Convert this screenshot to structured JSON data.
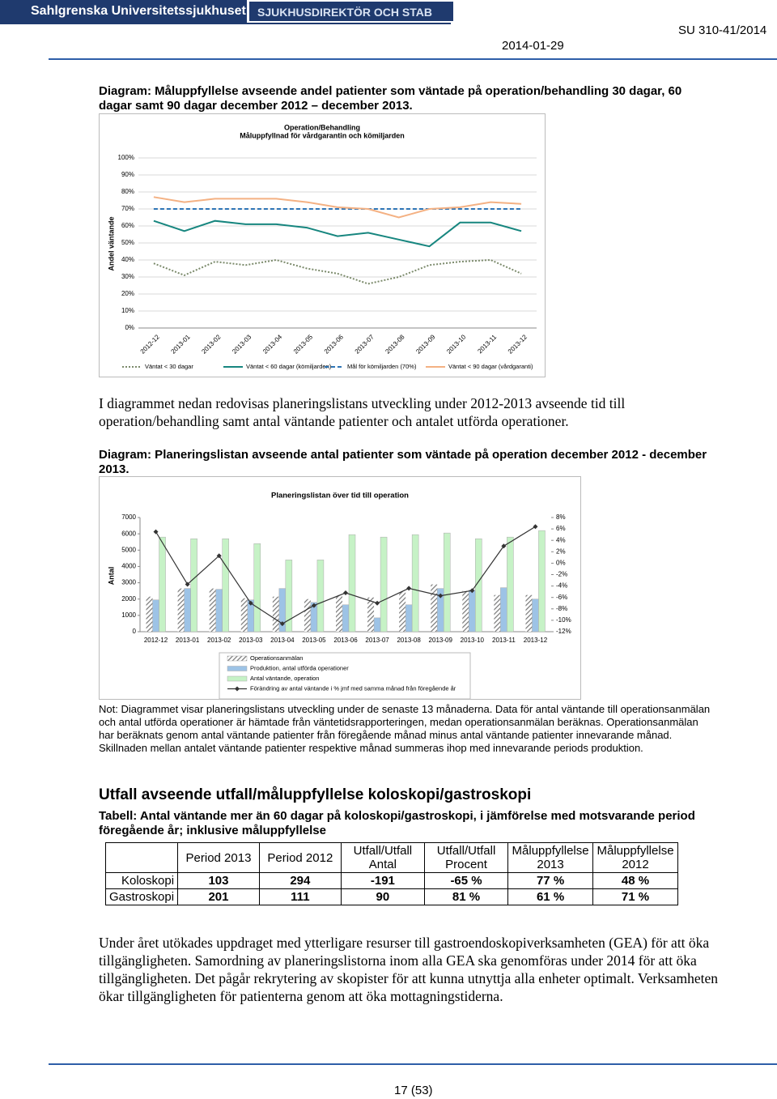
{
  "header": {
    "logo": "Sahlgrenska Universitetssjukhuset",
    "department": "SJUKHUSDIREKTÖR OCH STAB",
    "date": "2014-01-29",
    "reference": "SU 310-41/2014"
  },
  "caption_1": "Diagram: Måluppfyllelse avseende andel patienter som väntade på operation/behandling 30 dagar, 60 dagar samt 90 dagar december 2012 – december 2013.",
  "paragraph_1": "I diagrammet nedan redovisas planeringslistans utveckling under 2012-2013 avseende tid till operation/behandling samt antal väntande patienter och antalet utförda operationer.",
  "caption_2": "Diagram: Planeringslistan avseende antal patienter som väntade på operation december 2012 - december 2013.",
  "chart_data": [
    {
      "type": "line",
      "title": "Operation/Behandling",
      "subtitle": "Måluppfyllnad för vårdgarantin och kömiljarden",
      "y_label": "Andel väntande",
      "categories": [
        "2012-12",
        "2013-01",
        "2013-02",
        "2013-03",
        "2013-04",
        "2013-05",
        "2013-06",
        "2013-07",
        "2013-08",
        "2013-09",
        "2013-10",
        "2013-11",
        "2013-12"
      ],
      "ylim": [
        0,
        100
      ],
      "yticks": [
        {
          "value": 0,
          "label": "0%"
        },
        {
          "value": 10,
          "label": "10%"
        },
        {
          "value": 20,
          "label": "20%"
        },
        {
          "value": 30,
          "label": "30%"
        },
        {
          "value": 40,
          "label": "40%"
        },
        {
          "value": 50,
          "label": "50%"
        },
        {
          "value": 60,
          "label": "60%"
        },
        {
          "value": 70,
          "label": "70%"
        },
        {
          "value": 80,
          "label": "80%"
        },
        {
          "value": 90,
          "label": "90%"
        },
        {
          "value": 100,
          "label": "100%"
        }
      ],
      "grid": true,
      "series": [
        {
          "name": "Väntat < 30 dagar",
          "color": "#7b8a6b",
          "style": "dotted",
          "values": [
            38,
            31,
            39,
            37,
            40,
            35,
            32,
            26,
            30,
            37,
            39,
            40,
            32
          ]
        },
        {
          "name": "Väntat < 60 dagar (kömiljarden)",
          "color": "#17867f",
          "style": "solid",
          "values": [
            63,
            57,
            63,
            61,
            61,
            59,
            54,
            56,
            52,
            48,
            62,
            62,
            57
          ]
        },
        {
          "name": "Mål för kömiljarden (70%)",
          "color": "#2e75b6",
          "style": "dashed",
          "values": [
            70,
            70,
            70,
            70,
            70,
            70,
            70,
            70,
            70,
            70,
            70,
            70,
            70
          ]
        },
        {
          "name": "Väntat < 90 dagar (vårdgaranti)",
          "color": "#f4b183",
          "style": "solid",
          "values": [
            77,
            74,
            76,
            76,
            76,
            74,
            71,
            70,
            65,
            70,
            71,
            74,
            73
          ]
        }
      ]
    },
    {
      "type": "bar",
      "title": "Planeringslistan över tid till operation",
      "y_label": "Antal",
      "categories": [
        "2012-12",
        "2013-01",
        "2013-02",
        "2013-03",
        "2013-04",
        "2013-05",
        "2013-06",
        "2013-07",
        "2013-08",
        "2013-09",
        "2013-10",
        "2013-11",
        "2013-12"
      ],
      "ylim": [
        0,
        7000
      ],
      "yticks": [
        0,
        1000,
        2000,
        3000,
        4000,
        5000,
        6000,
        7000
      ],
      "y2lim": [
        -12,
        8
      ],
      "y2ticks": [
        {
          "value": -12,
          "label": "-12%"
        },
        {
          "value": -10,
          "label": "-10%"
        },
        {
          "value": -8,
          "label": "-8%"
        },
        {
          "value": -6,
          "label": "-6%"
        },
        {
          "value": -4,
          "label": "-4%"
        },
        {
          "value": -2,
          "label": "-2%"
        },
        {
          "value": 0,
          "label": "0%"
        },
        {
          "value": 2,
          "label": "2%"
        },
        {
          "value": 4,
          "label": "4%"
        },
        {
          "value": 6,
          "label": "6%"
        },
        {
          "value": 8,
          "label": "8%"
        }
      ],
      "grid": false,
      "series": [
        {
          "name": "Operationsanmälan",
          "color": "#777777",
          "hatch": true,
          "values": [
            2150,
            2650,
            2650,
            2050,
            2150,
            2000,
            2250,
            2100,
            2450,
            2900,
            2500,
            2250,
            2250
          ]
        },
        {
          "name": "Produktion, antal utförda operationer",
          "color": "#9dc3e6",
          "values": [
            1950,
            2650,
            2600,
            1950,
            2650,
            1800,
            1650,
            850,
            1650,
            2650,
            2550,
            2700,
            2000
          ]
        },
        {
          "name": "Antal väntande, operation",
          "color": "#c6f2c6",
          "values": [
            5800,
            5700,
            5700,
            5400,
            4400,
            4400,
            5950,
            5800,
            5950,
            6050,
            5700,
            5800,
            6200
          ]
        },
        {
          "name": "Förändring av antal väntande i % jmf med samma månad från föregående år",
          "color": "#333333",
          "type": "line",
          "axis": "y2",
          "values": [
            5.5,
            -3.7,
            1.3,
            -7.0,
            -10.6,
            -7.4,
            -5.2,
            -7.0,
            -4.4,
            -5.7,
            -4.8,
            3.0,
            6.4
          ]
        }
      ]
    }
  ],
  "note": "Not: Diagrammet visar planeringslistans utveckling under de senaste 13 månaderna. Data för antal väntande till operationsanmälan och antal utförda operationer är hämtade från väntetidsrapporteringen, medan operationsanmälan beräknas. Operationsanmälan har beräknats genom antal väntande patienter från föregående månad minus antal väntande patienter innevarande månad. Skillnaden mellan antalet väntande patienter respektive månad summeras ihop med innevarande periods produktion.",
  "section_heading": "Utfall avseende utfall/måluppfyllelse koloskopi/gastroskopi",
  "table_caption": "Tabell: Antal väntande mer än 60 dagar på koloskopi/gastroskopi, i jämförelse med motsvarande period föregående år; inklusive måluppfyllelse",
  "table": {
    "columns": [
      "Period 2013",
      "Period 2012",
      "Utfall/Utfall Antal",
      "Utfall/Utfall Procent",
      "Måluppfyllelse 2013",
      "Måluppfyllelse 2012"
    ],
    "rows": [
      {
        "label": "Koloskopi",
        "cells": [
          "103",
          "294",
          "-191",
          "-65 %",
          "77 %",
          "48 %"
        ]
      },
      {
        "label": "Gastroskopi",
        "cells": [
          "201",
          "111",
          "90",
          "81 %",
          "61 %",
          "71 %"
        ]
      }
    ]
  },
  "paragraph_2": "Under året utökades uppdraget med ytterligare resurser till gastroendoskopiverksamheten (GEA) för att öka tillgängligheten. Samordning av planeringslistorna inom alla GEA ska genomföras under 2014 för att öka tillgängligheten.  Det pågår rekrytering av skopister för att kunna utnyttja alla enheter optimalt. Verksamheten ökar tillgängligheten för patienterna genom att öka mottagningstiderna.",
  "footer": {
    "page": "17 (53)"
  }
}
